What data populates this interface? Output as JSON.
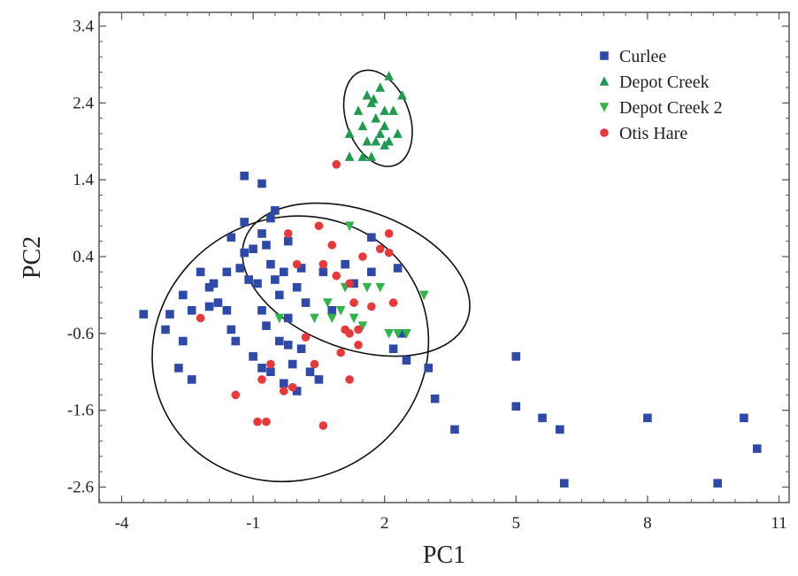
{
  "chart_data": {
    "type": "scatter",
    "title": "",
    "xlabel": "PC1",
    "ylabel": "PC2",
    "xlim": [
      -5,
      12
    ],
    "ylim": [
      -2.8,
      3.55
    ],
    "x_ticks": [
      -4,
      -1,
      2,
      5,
      8,
      11
    ],
    "y_ticks": [
      -2.6,
      -1.6,
      -0.6,
      0.4,
      1.4,
      2.4,
      3.4
    ],
    "x_tick_labels": [
      "-4",
      "-1",
      "2",
      "5",
      "8",
      "11"
    ],
    "y_tick_labels": [
      "-2.6",
      "-1.6",
      "-0.6",
      "0.4",
      "1.4",
      "2.4",
      "3.4"
    ],
    "grid": false,
    "legend_position": "top-right",
    "series": [
      {
        "name": "Curlee",
        "marker": "square",
        "color": "#2f49a8",
        "points": [
          [
            -3.5,
            -0.35
          ],
          [
            -3.0,
            -0.55
          ],
          [
            -2.9,
            -0.35
          ],
          [
            -2.6,
            -0.7
          ],
          [
            -2.4,
            -0.3
          ],
          [
            -2.7,
            -1.05
          ],
          [
            -2.4,
            -1.2
          ],
          [
            -2.6,
            -0.1
          ],
          [
            -2.2,
            0.2
          ],
          [
            -2.0,
            0.0
          ],
          [
            -1.8,
            -0.2
          ],
          [
            -1.6,
            -0.3
          ],
          [
            -1.5,
            -0.55
          ],
          [
            -1.4,
            -0.7
          ],
          [
            -1.6,
            0.2
          ],
          [
            -1.3,
            0.25
          ],
          [
            -1.1,
            0.1
          ],
          [
            -0.9,
            0.05
          ],
          [
            -0.8,
            -0.3
          ],
          [
            -0.7,
            -0.5
          ],
          [
            -0.6,
            0.3
          ],
          [
            -0.5,
            0.1
          ],
          [
            -0.4,
            -0.1
          ],
          [
            -0.3,
            0.2
          ],
          [
            -0.2,
            -0.4
          ],
          [
            0.0,
            0.0
          ],
          [
            0.1,
            0.25
          ],
          [
            0.2,
            -0.2
          ],
          [
            -1.0,
            -0.9
          ],
          [
            -0.8,
            -1.05
          ],
          [
            -0.6,
            -1.1
          ],
          [
            -0.3,
            -1.25
          ],
          [
            -0.1,
            -1.0
          ],
          [
            0.0,
            -1.35
          ],
          [
            0.3,
            -1.1
          ],
          [
            0.5,
            -1.2
          ],
          [
            -0.4,
            -0.7
          ],
          [
            -0.2,
            -0.75
          ],
          [
            0.1,
            -0.8
          ],
          [
            -1.2,
            0.45
          ],
          [
            -1.0,
            0.5
          ],
          [
            -0.7,
            0.55
          ],
          [
            -0.8,
            0.7
          ],
          [
            -1.5,
            0.65
          ],
          [
            -0.6,
            0.9
          ],
          [
            -0.5,
            1.0
          ],
          [
            -1.2,
            1.45
          ],
          [
            -0.8,
            1.35
          ],
          [
            1.1,
            0.3
          ],
          [
            1.3,
            0.05
          ],
          [
            1.7,
            0.2
          ],
          [
            1.7,
            0.65
          ],
          [
            2.3,
            0.25
          ],
          [
            2.4,
            -0.6
          ],
          [
            2.2,
            -0.8
          ],
          [
            2.5,
            -0.95
          ],
          [
            3.0,
            -1.05
          ],
          [
            3.15,
            -1.45
          ],
          [
            3.6,
            -1.85
          ],
          [
            5.0,
            -0.9
          ],
          [
            5.0,
            -1.55
          ],
          [
            5.6,
            -1.7
          ],
          [
            6.0,
            -1.85
          ],
          [
            6.1,
            -2.55
          ],
          [
            8.0,
            -1.7
          ],
          [
            9.6,
            -2.55
          ],
          [
            10.2,
            -1.7
          ],
          [
            10.5,
            -2.1
          ],
          [
            -1.2,
            0.85
          ],
          [
            -0.2,
            0.6
          ],
          [
            0.6,
            0.2
          ],
          [
            0.8,
            -0.3
          ],
          [
            -2.0,
            -0.25
          ],
          [
            -1.9,
            0.05
          ]
        ]
      },
      {
        "name": "Depot Creek",
        "marker": "triangle-up",
        "color": "#1f9a4e",
        "points": [
          [
            1.2,
            2.0
          ],
          [
            1.2,
            1.7
          ],
          [
            1.4,
            2.3
          ],
          [
            1.5,
            2.1
          ],
          [
            1.6,
            2.5
          ],
          [
            1.7,
            2.4
          ],
          [
            1.7,
            1.7
          ],
          [
            1.8,
            2.2
          ],
          [
            1.8,
            1.9
          ],
          [
            1.9,
            2.0
          ],
          [
            1.9,
            2.6
          ],
          [
            2.0,
            2.3
          ],
          [
            2.0,
            2.1
          ],
          [
            2.1,
            2.75
          ],
          [
            2.1,
            1.9
          ],
          [
            2.2,
            2.3
          ],
          [
            2.3,
            2.0
          ],
          [
            2.4,
            2.5
          ],
          [
            1.6,
            1.9
          ],
          [
            1.5,
            1.7
          ],
          [
            2.0,
            1.85
          ],
          [
            1.75,
            2.45
          ]
        ]
      },
      {
        "name": "Depot Creek 2",
        "marker": "triangle-down",
        "color": "#2fb548",
        "points": [
          [
            1.2,
            0.8
          ],
          [
            1.1,
            0.0
          ],
          [
            1.6,
            0.0
          ],
          [
            1.9,
            0.0
          ],
          [
            0.7,
            -0.2
          ],
          [
            0.8,
            -0.4
          ],
          [
            1.0,
            -0.3
          ],
          [
            1.3,
            -0.4
          ],
          [
            2.1,
            -0.6
          ],
          [
            2.3,
            -0.6
          ],
          [
            2.5,
            -0.6
          ],
          [
            2.9,
            -0.1
          ],
          [
            1.5,
            -0.5
          ],
          [
            0.4,
            -0.4
          ],
          [
            -0.4,
            -0.4
          ]
        ]
      },
      {
        "name": "Otis Hare",
        "marker": "circle",
        "color": "#e8393a",
        "points": [
          [
            0.9,
            1.6
          ],
          [
            0.6,
            0.3
          ],
          [
            0.8,
            0.55
          ],
          [
            0.9,
            0.15
          ],
          [
            1.2,
            0.05
          ],
          [
            1.3,
            -0.2
          ],
          [
            1.5,
            0.4
          ],
          [
            1.7,
            -0.25
          ],
          [
            1.4,
            -0.55
          ],
          [
            1.2,
            -0.6
          ],
          [
            1.4,
            -0.75
          ],
          [
            1.2,
            -1.2
          ],
          [
            1.0,
            -0.85
          ],
          [
            1.1,
            -0.55
          ],
          [
            1.9,
            0.5
          ],
          [
            2.1,
            0.7
          ],
          [
            2.1,
            0.45
          ],
          [
            2.2,
            -0.2
          ],
          [
            0.2,
            -0.65
          ],
          [
            0.4,
            -1.0
          ],
          [
            -0.8,
            -1.2
          ],
          [
            -0.3,
            -1.35
          ],
          [
            -0.1,
            -1.3
          ],
          [
            -1.4,
            -1.4
          ],
          [
            -0.6,
            -1.0
          ],
          [
            -0.9,
            -1.75
          ],
          [
            -0.7,
            -1.75
          ],
          [
            0.6,
            -1.8
          ],
          [
            0.0,
            0.3
          ],
          [
            -0.2,
            0.7
          ],
          [
            -2.2,
            -0.4
          ],
          [
            0.5,
            0.8
          ]
        ]
      }
    ],
    "ellipses": [
      {
        "series": "Depot Creek",
        "cx": 1.85,
        "cy": 2.2,
        "rx": 0.72,
        "ry": 0.65,
        "rotate_deg": 20
      },
      {
        "series": "Curlee",
        "cx": -0.15,
        "cy": -0.8,
        "rx": 3.2,
        "ry": 1.7,
        "rotate_deg": 28
      },
      {
        "series": "Depot Creek 2",
        "cx": 1.35,
        "cy": 0.1,
        "rx": 2.7,
        "ry": 0.9,
        "rotate_deg": -20
      }
    ]
  }
}
